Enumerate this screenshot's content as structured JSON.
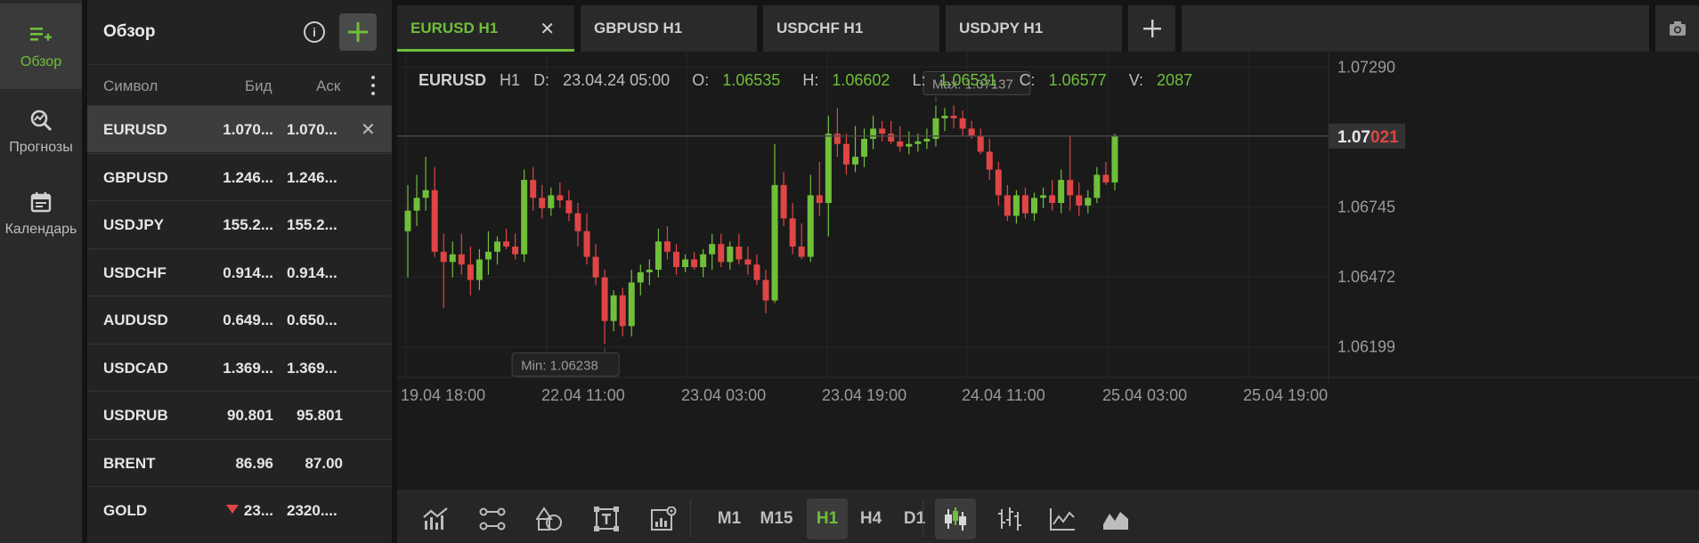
{
  "nav": {
    "items": [
      {
        "label": "Обзор",
        "icon": "watchlist-add-icon",
        "active": true
      },
      {
        "label": "Прогнозы",
        "icon": "forecast-search-icon",
        "active": false
      },
      {
        "label": "Календарь",
        "icon": "calendar-icon",
        "active": false
      }
    ]
  },
  "panel": {
    "title": "Обзор",
    "columns": {
      "symbol": "Символ",
      "bid": "Бид",
      "ask": "Аск"
    },
    "rows": [
      {
        "symbol": "EURUSD",
        "bid": "1.070...",
        "ask": "1.070...",
        "selected": true
      },
      {
        "symbol": "GBPUSD",
        "bid": "1.246...",
        "ask": "1.246..."
      },
      {
        "symbol": "USDJPY",
        "bid": "155.2...",
        "ask": "155.2..."
      },
      {
        "symbol": "USDCHF",
        "bid": "0.914...",
        "ask": "0.914..."
      },
      {
        "symbol": "AUDUSD",
        "bid": "0.649...",
        "ask": "0.650..."
      },
      {
        "symbol": "USDCAD",
        "bid": "1.369...",
        "ask": "1.369..."
      },
      {
        "symbol": "USDRUB",
        "bid": "90.801",
        "ask": "95.801"
      },
      {
        "symbol": "BRENT",
        "bid": "86.96",
        "ask": "87.00"
      },
      {
        "symbol": "GOLD",
        "bid": "23...",
        "ask": "2320....",
        "down": true
      }
    ]
  },
  "tabs": [
    {
      "label": "EURUSD H1",
      "active": true
    },
    {
      "label": "GBPUSD H1"
    },
    {
      "label": "USDCHF H1"
    },
    {
      "label": "USDJPY H1"
    }
  ],
  "ohlc": {
    "symbol": "EURUSD",
    "tf": "H1",
    "d_label": "D:",
    "date": "23.04.24 05:00",
    "o_label": "O:",
    "open": "1.06535",
    "h_label": "H:",
    "high": "1.06602",
    "l_label": "L:",
    "low": "1.06531",
    "c_label": "C:",
    "close": "1.06577",
    "v_label": "V:",
    "volume": "2087"
  },
  "colors": {
    "up": "#6fbf3a",
    "down": "#e04545",
    "accent": "#6fbf3a"
  },
  "chart_data": {
    "type": "candlestick",
    "symbol": "EURUSD",
    "timeframe": "H1",
    "ylim": [
      1.0608,
      1.0735
    ],
    "y_ticks": [
      "1.07290",
      "1.06745",
      "1.06472",
      "1.06199"
    ],
    "x_ticks": [
      "19.04 18:00",
      "22.04 11:00",
      "23.04 03:00",
      "23.04 19:00",
      "24.04 11:00",
      "25.04 03:00",
      "25.04 19:00"
    ],
    "current_price": {
      "prefix": "1.07",
      "suffix": "021",
      "value": 1.07021
    },
    "max_label": "Max: 1.07137",
    "min_label": "Min: 1.06238",
    "candles": [
      [
        1.0665,
        1.0683,
        1.0647,
        1.0673
      ],
      [
        1.0673,
        1.0687,
        1.0667,
        1.0678
      ],
      [
        1.0678,
        1.0694,
        1.0673,
        1.0681
      ],
      [
        1.0681,
        1.069,
        1.0655,
        1.0657
      ],
      [
        1.0657,
        1.0664,
        1.0635,
        1.0653
      ],
      [
        1.0653,
        1.0661,
        1.0647,
        1.0656
      ],
      [
        1.0656,
        1.0664,
        1.0648,
        1.0652
      ],
      [
        1.0652,
        1.0659,
        1.064,
        1.0646
      ],
      [
        1.0646,
        1.0658,
        1.0642,
        1.0654
      ],
      [
        1.0654,
        1.0665,
        1.0648,
        1.0657
      ],
      [
        1.0657,
        1.0663,
        1.0652,
        1.0661
      ],
      [
        1.0661,
        1.0666,
        1.0658,
        1.0659
      ],
      [
        1.0659,
        1.0664,
        1.0654,
        1.0656
      ],
      [
        1.0656,
        1.0689,
        1.0653,
        1.0685
      ],
      [
        1.0685,
        1.069,
        1.0673,
        1.0678
      ],
      [
        1.0678,
        1.0683,
        1.067,
        1.0674
      ],
      [
        1.0674,
        1.0682,
        1.0671,
        1.0679
      ],
      [
        1.0679,
        1.0684,
        1.0674,
        1.0677
      ],
      [
        1.0677,
        1.0681,
        1.0669,
        1.0672
      ],
      [
        1.0672,
        1.0676,
        1.0659,
        1.0665
      ],
      [
        1.0665,
        1.0672,
        1.0652,
        1.0655
      ],
      [
        1.0655,
        1.066,
        1.0644,
        1.0647
      ],
      [
        1.0647,
        1.065,
        1.0621,
        1.063
      ],
      [
        1.063,
        1.0642,
        1.0626,
        1.064
      ],
      [
        1.064,
        1.0643,
        1.0624,
        1.0628
      ],
      [
        1.0628,
        1.065,
        1.0624,
        1.0645
      ],
      [
        1.0645,
        1.0652,
        1.064,
        1.0649
      ],
      [
        1.0649,
        1.0654,
        1.0644,
        1.065
      ],
      [
        1.065,
        1.0666,
        1.0647,
        1.0661
      ],
      [
        1.0661,
        1.0667,
        1.0654,
        1.0657
      ],
      [
        1.0657,
        1.066,
        1.0648,
        1.0651
      ],
      [
        1.0651,
        1.0656,
        1.0649,
        1.0654
      ],
      [
        1.0654,
        1.0657,
        1.065,
        1.0651
      ],
      [
        1.0651,
        1.0658,
        1.0647,
        1.0656
      ],
      [
        1.0656,
        1.0664,
        1.065,
        1.066
      ],
      [
        1.066,
        1.0664,
        1.0651,
        1.0653
      ],
      [
        1.0653,
        1.0661,
        1.065,
        1.0659
      ],
      [
        1.0659,
        1.0664,
        1.0652,
        1.0654
      ],
      [
        1.0654,
        1.0659,
        1.0648,
        1.0652
      ],
      [
        1.0652,
        1.0656,
        1.0644,
        1.0646
      ],
      [
        1.0646,
        1.065,
        1.0633,
        1.0638
      ],
      [
        1.0638,
        1.0699,
        1.0637,
        1.0683
      ],
      [
        1.0683,
        1.0688,
        1.0667,
        1.067
      ],
      [
        1.067,
        1.0676,
        1.0656,
        1.0659
      ],
      [
        1.0659,
        1.0668,
        1.0654,
        1.0655
      ],
      [
        1.0655,
        1.0687,
        1.0653,
        1.0679
      ],
      [
        1.0679,
        1.0692,
        1.0671,
        1.0676
      ],
      [
        1.0676,
        1.071,
        1.0663,
        1.0703
      ],
      [
        1.0703,
        1.0713,
        1.0694,
        1.0699
      ],
      [
        1.0699,
        1.0703,
        1.0687,
        1.0691
      ],
      [
        1.0691,
        1.0706,
        1.0688,
        1.0694
      ],
      [
        1.0694,
        1.0705,
        1.069,
        1.0701
      ],
      [
        1.0701,
        1.071,
        1.0697,
        1.0705
      ],
      [
        1.0705,
        1.0708,
        1.07,
        1.0703
      ],
      [
        1.0703,
        1.0708,
        1.0699,
        1.07
      ],
      [
        1.07,
        1.0706,
        1.0696,
        1.0698
      ],
      [
        1.0698,
        1.0704,
        1.0695,
        1.0699
      ],
      [
        1.0699,
        1.0703,
        1.0696,
        1.07
      ],
      [
        1.07,
        1.0705,
        1.0697,
        1.0701
      ],
      [
        1.0701,
        1.0714,
        1.0698,
        1.0709
      ],
      [
        1.0709,
        1.0713,
        1.0704,
        1.071
      ],
      [
        1.071,
        1.0714,
        1.0705,
        1.0709
      ],
      [
        1.0709,
        1.0712,
        1.0702,
        1.0705
      ],
      [
        1.0705,
        1.0708,
        1.0701,
        1.0702
      ],
      [
        1.0702,
        1.0705,
        1.0695,
        1.0696
      ],
      [
        1.0696,
        1.0701,
        1.0685,
        1.0689
      ],
      [
        1.0689,
        1.0692,
        1.0675,
        1.0679
      ],
      [
        1.0679,
        1.0683,
        1.0669,
        1.0671
      ],
      [
        1.0671,
        1.0681,
        1.0668,
        1.0679
      ],
      [
        1.0679,
        1.0682,
        1.067,
        1.0672
      ],
      [
        1.0672,
        1.068,
        1.0669,
        1.0678
      ],
      [
        1.0678,
        1.0682,
        1.0674,
        1.0679
      ],
      [
        1.0679,
        1.0685,
        1.0673,
        1.0676
      ],
      [
        1.0676,
        1.0689,
        1.0672,
        1.0685
      ],
      [
        1.0685,
        1.0702,
        1.0673,
        1.0679
      ],
      [
        1.0679,
        1.0684,
        1.0671,
        1.0675
      ],
      [
        1.0675,
        1.0681,
        1.0672,
        1.0678
      ],
      [
        1.0678,
        1.069,
        1.0676,
        1.0687
      ],
      [
        1.0687,
        1.0692,
        1.0683,
        1.0684
      ],
      [
        1.0684,
        1.0703,
        1.0681,
        1.0702
      ]
    ]
  },
  "timeframes": [
    {
      "label": "M1"
    },
    {
      "label": "M15"
    },
    {
      "label": "H1",
      "active": true
    },
    {
      "label": "H4"
    },
    {
      "label": "D1"
    },
    {
      "label": "..."
    }
  ]
}
